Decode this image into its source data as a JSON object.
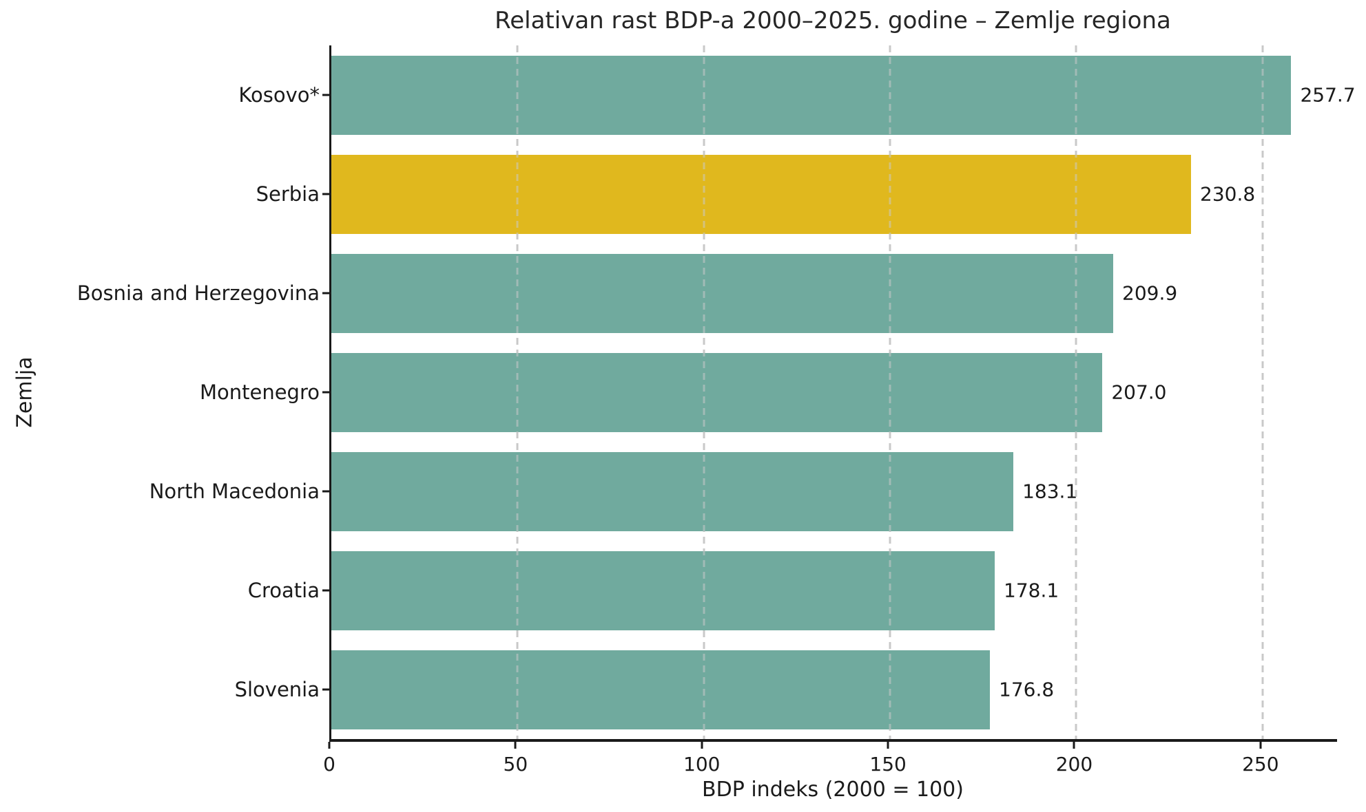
{
  "chart_data": {
    "type": "bar",
    "orientation": "horizontal",
    "title": "Relativan rast BDP-a 2000–2025. godine – Zemlje regiona",
    "xlabel": "BDP indeks (2000 = 100)",
    "ylabel": "Zemlja",
    "categories": [
      "Kosovo*",
      "Serbia",
      "Bosnia and Herzegovina",
      "Montenegro",
      "North Macedonia",
      "Croatia",
      "Slovenia"
    ],
    "values": [
      257.7,
      230.8,
      209.9,
      207.0,
      183.1,
      178.1,
      176.8
    ],
    "value_labels": [
      "257.7",
      "230.8",
      "209.9",
      "207.0",
      "183.1",
      "178.1",
      "176.8"
    ],
    "highlighted_category": "Serbia",
    "bar_colors": [
      "#70aa9e",
      "#e0b81e",
      "#70aa9e",
      "#70aa9e",
      "#70aa9e",
      "#70aa9e",
      "#70aa9e"
    ],
    "xlim": [
      0,
      270
    ],
    "xtick_values": [
      0,
      50,
      100,
      150,
      200,
      250
    ],
    "xtick_labels": [
      "0",
      "50",
      "100",
      "150",
      "200",
      "250"
    ],
    "grid": "vertical-dashed",
    "legend": "none",
    "colors": {
      "bar_default": "#70aa9e",
      "bar_highlight": "#e0b81e",
      "grid": "#c9c9c9",
      "spine": "#1a1a1a",
      "text": "#1a1a1a",
      "background": "#ffffff"
    }
  }
}
